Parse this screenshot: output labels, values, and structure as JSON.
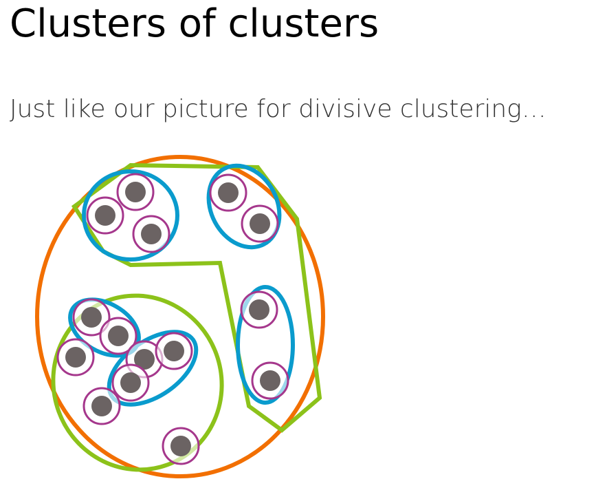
{
  "header": {
    "title": "Clusters of clusters",
    "subtitle": "Just like our picture for divisive clustering…"
  }
}
